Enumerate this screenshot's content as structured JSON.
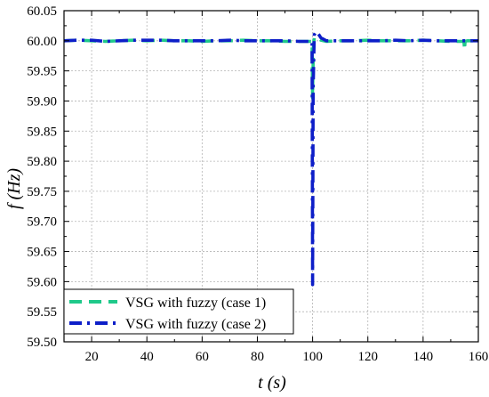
{
  "chart_data": {
    "type": "line",
    "title": "",
    "xlabel": "t (s)",
    "ylabel": "f (Hz)",
    "xlim": [
      10,
      160
    ],
    "ylim": [
      59.5,
      60.05
    ],
    "xticks": [
      20,
      40,
      60,
      80,
      100,
      120,
      140,
      160
    ],
    "yticks": [
      59.5,
      59.55,
      59.6,
      59.65,
      59.7,
      59.75,
      59.8,
      59.85,
      59.9,
      59.95,
      60.0,
      60.05
    ],
    "xtick_labels": [
      "20",
      "40",
      "60",
      "80",
      "100",
      "120",
      "140",
      "160"
    ],
    "ytick_labels": [
      "59.50",
      "59.55",
      "59.60",
      "59.65",
      "59.70",
      "59.75",
      "59.80",
      "59.85",
      "59.90",
      "59.95",
      "60.00",
      "60.05"
    ],
    "grid": true,
    "legend_position": "bottom-left",
    "series": [
      {
        "name": "VSG with fuzzy (case 1)",
        "color": "#1fc98a",
        "dash": "long-dash",
        "x": [
          10,
          15,
          20,
          25,
          30,
          35,
          40,
          45,
          50,
          55,
          60,
          65,
          70,
          75,
          80,
          85,
          90,
          95,
          99.8,
          100.0,
          100.1,
          100.3,
          100.6,
          101.5,
          103,
          105,
          110,
          115,
          120,
          125,
          130,
          135,
          140,
          145,
          150,
          154.8,
          155.0,
          155.2,
          156,
          160
        ],
        "y": [
          60.0,
          60.001,
          60.0,
          59.999,
          60.0,
          60.001,
          60.0,
          60.001,
          60.0,
          60.0,
          59.999,
          60.0,
          60.0,
          60.001,
          60.0,
          60.0,
          59.999,
          59.999,
          59.999,
          59.905,
          59.94,
          59.99,
          60.005,
          60.006,
          60.001,
          59.999,
          60.0,
          60.0,
          60.001,
          60.0,
          60.0,
          60.0,
          60.001,
          60.0,
          59.999,
          59.999,
          59.985,
          59.999,
          60.0,
          60.0
        ]
      },
      {
        "name": "VSG with fuzzy (case 2)",
        "color": "#0d1ec8",
        "dash": "dash-dot",
        "x": [
          10,
          15,
          20,
          25,
          30,
          35,
          40,
          45,
          50,
          55,
          60,
          65,
          70,
          75,
          80,
          85,
          90,
          95,
          99.8,
          100.0,
          100.2,
          100.6,
          101.2,
          102,
          103,
          105,
          110,
          115,
          120,
          125,
          130,
          135,
          140,
          145,
          150,
          155,
          160
        ],
        "y": [
          60.0,
          60.001,
          60.001,
          59.999,
          60.0,
          60.001,
          60.001,
          60.001,
          60.0,
          60.0,
          60.0,
          60.0,
          60.001,
          60.0,
          60.0,
          60.0,
          60.0,
          59.999,
          59.999,
          59.595,
          59.92,
          60.01,
          60.015,
          60.012,
          60.005,
          60.0,
          60.0,
          60.0,
          60.0,
          60.0,
          60.001,
          60.0,
          60.001,
          60.0,
          60.0,
          60.0,
          60.0
        ]
      }
    ]
  }
}
